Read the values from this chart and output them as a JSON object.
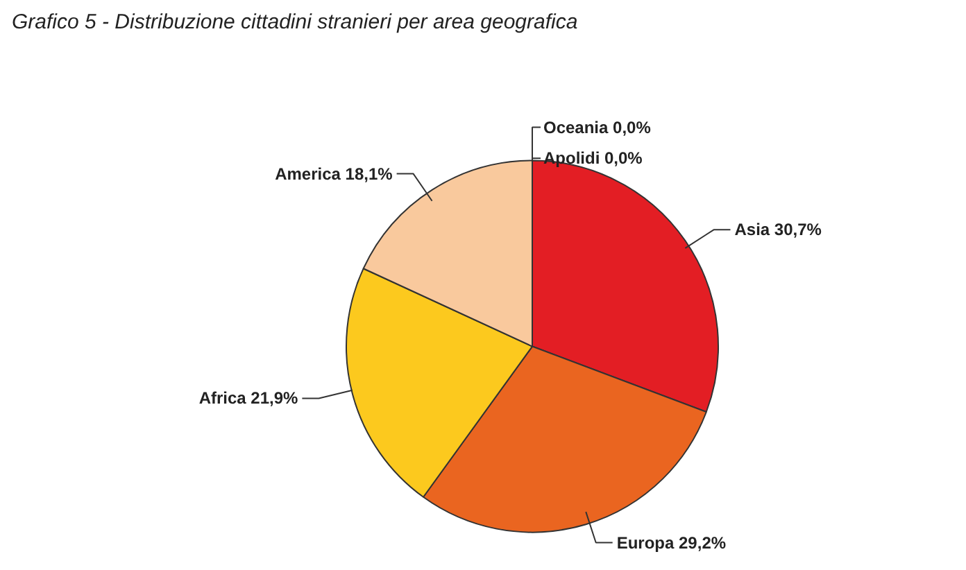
{
  "chart_data": {
    "type": "pie",
    "title": "Grafico 5 - Distribuzione cittadini stranieri per area geografica",
    "categories": [
      "Asia",
      "Europa",
      "Africa",
      "America",
      "Apolidi",
      "Oceania"
    ],
    "values": [
      30.7,
      29.2,
      21.9,
      18.1,
      0.0,
      0.0
    ],
    "value_labels": [
      "30,7%",
      "29,2%",
      "21,9%",
      "18,1%",
      "0,0%",
      "0,0%"
    ],
    "colors": [
      "#e31e24",
      "#ea6520",
      "#fcc91e",
      "#f9c99d",
      "#e31e24",
      "#ea6520"
    ]
  }
}
